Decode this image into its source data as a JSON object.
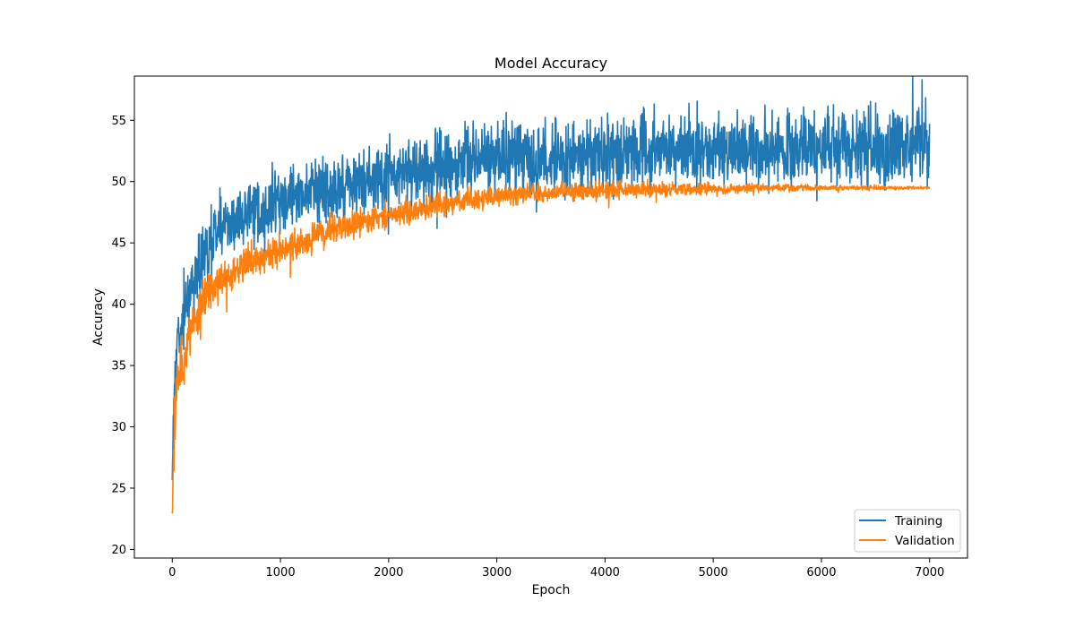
{
  "chart_data": {
    "type": "line",
    "title": "Model Accuracy",
    "xlabel": "Epoch",
    "ylabel": "Accuracy",
    "xlim": [
      -350,
      7350
    ],
    "ylim": [
      19.3,
      58.6
    ],
    "xticks": [
      0,
      1000,
      2000,
      3000,
      4000,
      5000,
      6000,
      7000
    ],
    "yticks": [
      20,
      25,
      30,
      35,
      40,
      45,
      50,
      55
    ],
    "grid": false,
    "legend_position": "lower-right",
    "series": [
      {
        "name": "Training",
        "color": "#1f77b4",
        "x": [
          0,
          20,
          50,
          100,
          150,
          200,
          300,
          400,
          500,
          700,
          1000,
          1300,
          1500,
          2000,
          2500,
          3000,
          3500,
          4000,
          4500,
          5000,
          5500,
          6000,
          6500,
          7000
        ],
        "y": [
          26.0,
          34.0,
          37.0,
          38.5,
          40.5,
          42.0,
          44.5,
          45.8,
          46.5,
          47.5,
          48.7,
          49.3,
          49.7,
          50.6,
          51.4,
          51.9,
          52.1,
          52.3,
          52.5,
          52.6,
          52.7,
          52.7,
          52.8,
          52.8
        ],
        "noise": [
          1.0,
          2.0,
          2.0,
          2.2,
          2.2,
          2.2,
          2.2,
          2.2,
          2.2,
          2.2,
          2.2,
          2.2,
          2.2,
          2.2,
          2.3,
          2.4,
          2.4,
          2.4,
          2.4,
          2.4,
          2.4,
          2.5,
          2.5,
          2.5
        ]
      },
      {
        "name": "Validation",
        "color": "#ff7f0e",
        "x": [
          0,
          20,
          50,
          100,
          150,
          200,
          300,
          400,
          500,
          700,
          1000,
          1300,
          1500,
          2000,
          2500,
          3000,
          3500,
          4000,
          4500,
          5000,
          5500,
          6000,
          6500,
          7000
        ],
        "y": [
          22.5,
          31.0,
          33.5,
          35.5,
          37.5,
          38.8,
          40.5,
          41.5,
          42.3,
          43.2,
          44.5,
          45.5,
          46.2,
          47.3,
          48.2,
          48.8,
          49.1,
          49.3,
          49.4,
          49.45,
          49.5,
          49.5,
          49.5,
          49.5
        ],
        "noise": [
          1.5,
          2.5,
          2.0,
          2.0,
          1.8,
          1.6,
          1.5,
          1.4,
          1.3,
          1.2,
          1.1,
          1.0,
          1.0,
          0.9,
          0.8,
          0.75,
          0.65,
          0.6,
          0.5,
          0.35,
          0.25,
          0.2,
          0.15,
          0.1
        ]
      }
    ]
  }
}
